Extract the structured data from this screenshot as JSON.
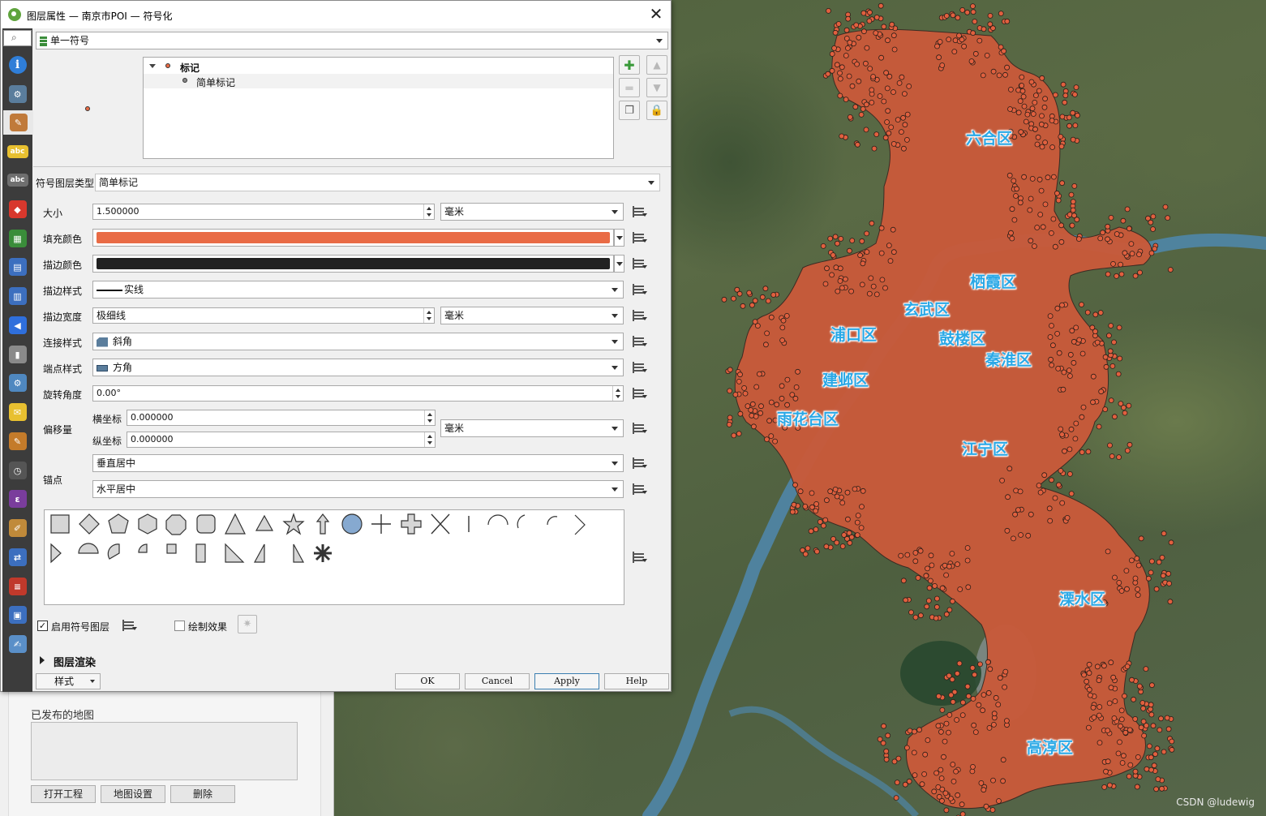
{
  "window": {
    "title": "图层属性 — 南京市POI — 符号化",
    "close_glyph": "✕"
  },
  "sidebar": {
    "search_glyph": "⌕",
    "items": [
      {
        "name": "information-icon",
        "color": "#2f7ed8",
        "glyph": "i"
      },
      {
        "name": "source-icon",
        "color": "#5a7d9c",
        "glyph": "⚙"
      },
      {
        "name": "symbology-icon",
        "color": "#c07a3a",
        "glyph": "✎"
      },
      {
        "name": "labels-icon",
        "color": "#e8c030",
        "glyph": "abc"
      },
      {
        "name": "masks-icon",
        "color": "#6f6f6f",
        "glyph": "abc"
      },
      {
        "name": "3d-view-icon",
        "color": "#d8382d",
        "glyph": "◆"
      },
      {
        "name": "diagrams-icon",
        "color": "#3a8d3a",
        "glyph": "▦"
      },
      {
        "name": "fields-icon",
        "color": "#3c6fbf",
        "glyph": "▤"
      },
      {
        "name": "attributes-form-icon",
        "color": "#3c6fbf",
        "glyph": "▥"
      },
      {
        "name": "joins-icon",
        "color": "#2f6fdc",
        "glyph": "◀"
      },
      {
        "name": "auxiliary-storage-icon",
        "color": "#8a8a8a",
        "glyph": "▮"
      },
      {
        "name": "actions-icon",
        "color": "#4f88c0",
        "glyph": "⚙"
      },
      {
        "name": "display-icon",
        "color": "#e8c030",
        "glyph": "✉"
      },
      {
        "name": "rendering-icon",
        "color": "#c47b2a",
        "glyph": "✎"
      },
      {
        "name": "temporal-icon",
        "color": "#555555",
        "glyph": "◷"
      },
      {
        "name": "variables-icon",
        "color": "#7a3d9c",
        "glyph": "ε"
      },
      {
        "name": "metadata-icon",
        "color": "#c08a3a",
        "glyph": "✐"
      },
      {
        "name": "dependencies-icon",
        "color": "#3c6fbf",
        "glyph": "⇄"
      },
      {
        "name": "legend-icon",
        "color": "#c0392b",
        "glyph": "≡"
      },
      {
        "name": "qgis-server-icon",
        "color": "#3c6fbf",
        "glyph": "▣"
      },
      {
        "name": "digitizing-icon",
        "color": "#5a8fc8",
        "glyph": "✍"
      }
    ]
  },
  "renderer": {
    "type": "单一符号",
    "type_icon": "single-symbol-icon"
  },
  "symbol_tree": {
    "root": "标记",
    "child": "简单标记"
  },
  "symbol_layer_type": {
    "label": "符号图层类型",
    "value": "简单标记"
  },
  "props": {
    "size": {
      "label": "大小",
      "value": "1.500000",
      "unit": "毫米"
    },
    "fill_color": {
      "label": "填充颜色",
      "color": "#e96b45"
    },
    "stroke_color": {
      "label": "描边颜色",
      "color": "#222222"
    },
    "stroke_style": {
      "label": "描边样式",
      "value": "实线"
    },
    "stroke_width": {
      "label": "描边宽度",
      "value": "极细线",
      "unit": "毫米"
    },
    "join_style": {
      "label": "连接样式",
      "value": "斜角"
    },
    "cap_style": {
      "label": "端点样式",
      "value": "方角"
    },
    "rotation": {
      "label": "旋转角度",
      "value": "0.00°"
    },
    "offset": {
      "label": "偏移量",
      "x_label": "横坐标",
      "x_value": "0.000000",
      "y_label": "纵坐标",
      "y_value": "0.000000",
      "unit": "毫米"
    },
    "anchor": {
      "label": "锚点",
      "vertical": "垂直居中",
      "horizontal": "水平居中"
    }
  },
  "options": {
    "enable_layer": "启用符号图层",
    "enable_checked": "✓",
    "draw_effects": "绘制效果"
  },
  "layer_rendering": "图层渲染",
  "footer": {
    "style": "样式",
    "ok": "OK",
    "cancel": "Cancel",
    "apply": "Apply",
    "help": "Help"
  },
  "behind_panel": {
    "published_maps": "已发布的地图",
    "open_project": "打开工程",
    "map_settings": "地图设置",
    "delete": "删除"
  },
  "map": {
    "poi_color": "#e0603f",
    "districts": [
      "六合区",
      "栖霞区",
      "玄武区",
      "浦口区",
      "鼓楼区",
      "秦淮区",
      "建邺区",
      "雨花台区",
      "江宁区",
      "溧水区",
      "高淳区"
    ],
    "watermark": "CSDN @ludewig"
  }
}
